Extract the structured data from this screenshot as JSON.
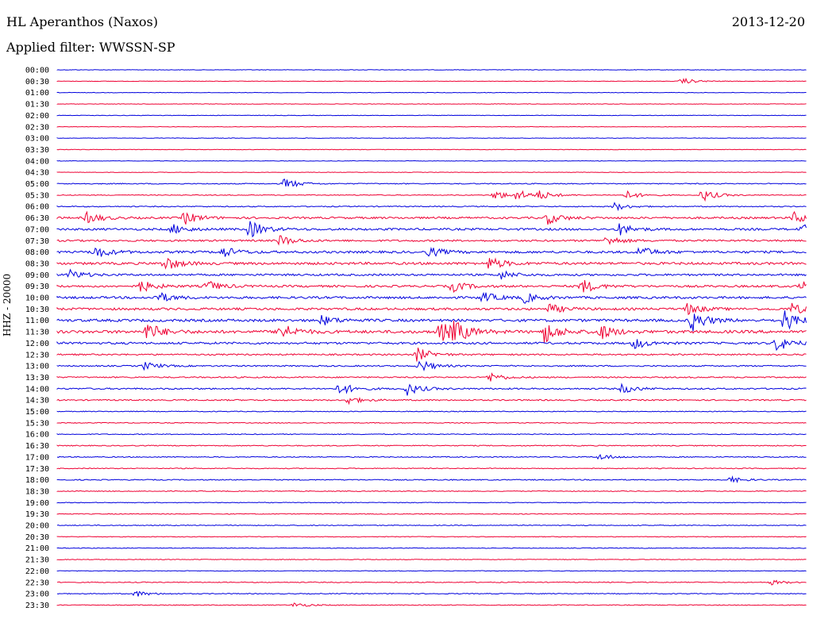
{
  "header": {
    "station": "HL Aperanthos (Naxos)",
    "date": "2013-12-20",
    "filter": "Applied filter: WWSSN-SP"
  },
  "axis": {
    "channel_label": "HHZ - 20000"
  },
  "colors": {
    "trace_a": "#0000dd",
    "trace_b": "#ee0033",
    "background": "#ffffff"
  },
  "chart_data": {
    "type": "line",
    "title": "HL Aperanthos (Naxos)",
    "subtitle": "Applied filter: WWSSN-SP",
    "ylabel": "HHZ - 20000",
    "grid": false,
    "row_labels": [
      "00:00",
      "00:30",
      "01:00",
      "01:30",
      "02:00",
      "02:30",
      "03:00",
      "03:30",
      "04:00",
      "04:30",
      "05:00",
      "05:30",
      "06:00",
      "06:30",
      "07:00",
      "07:30",
      "08:00",
      "08:30",
      "09:00",
      "09:30",
      "10:00",
      "10:30",
      "11:00",
      "11:30",
      "12:00",
      "12:30",
      "13:00",
      "13:30",
      "14:00",
      "14:30",
      "15:00",
      "15:30",
      "16:00",
      "16:30",
      "17:00",
      "17:30",
      "18:00",
      "18:30",
      "19:00",
      "19:30",
      "20:00",
      "20:30",
      "21:00",
      "21:30",
      "22:00",
      "22:30",
      "23:00",
      "23:30"
    ],
    "minutes_per_row": 30,
    "color_cycle": [
      "#0000dd",
      "#ee0033"
    ],
    "noise_level": [
      0.3,
      0.3,
      0.3,
      0.3,
      0.3,
      0.3,
      0.3,
      0.3,
      0.3,
      0.3,
      0.6,
      0.5,
      0.6,
      1.2,
      1.3,
      1.1,
      1.4,
      1.5,
      1.2,
      1.3,
      1.4,
      1.4,
      1.6,
      1.8,
      1.3,
      0.9,
      0.8,
      0.8,
      0.9,
      0.8,
      0.5,
      0.5,
      0.5,
      0.6,
      0.6,
      0.5,
      0.6,
      0.5,
      0.4,
      0.5,
      0.5,
      0.4,
      0.4,
      0.4,
      0.4,
      0.5,
      0.5,
      0.5
    ],
    "events": [
      {
        "row": 1,
        "minute": 25.0,
        "amplitude": 4
      },
      {
        "row": 10,
        "minute": 9.1,
        "amplitude": 7
      },
      {
        "row": 11,
        "minute": 17.5,
        "amplitude": 6
      },
      {
        "row": 11,
        "minute": 18.4,
        "amplitude": 6
      },
      {
        "row": 11,
        "minute": 19.3,
        "amplitude": 5
      },
      {
        "row": 11,
        "minute": 22.8,
        "amplitude": 5
      },
      {
        "row": 11,
        "minute": 25.8,
        "amplitude": 8
      },
      {
        "row": 12,
        "minute": 22.3,
        "amplitude": 5
      },
      {
        "row": 13,
        "minute": 1.2,
        "amplitude": 7
      },
      {
        "row": 13,
        "minute": 5.1,
        "amplitude": 8
      },
      {
        "row": 13,
        "minute": 19.6,
        "amplitude": 8
      },
      {
        "row": 13,
        "minute": 29.5,
        "amplitude": 7
      },
      {
        "row": 14,
        "minute": 4.6,
        "amplitude": 6
      },
      {
        "row": 14,
        "minute": 7.7,
        "amplitude": 11
      },
      {
        "row": 14,
        "minute": 22.5,
        "amplitude": 7
      },
      {
        "row": 14,
        "minute": 29.8,
        "amplitude": 6
      },
      {
        "row": 15,
        "minute": 8.9,
        "amplitude": 7
      },
      {
        "row": 15,
        "minute": 22.0,
        "amplitude": 6
      },
      {
        "row": 16,
        "minute": 1.5,
        "amplitude": 8
      },
      {
        "row": 16,
        "minute": 6.6,
        "amplitude": 7
      },
      {
        "row": 16,
        "minute": 14.9,
        "amplitude": 6
      },
      {
        "row": 16,
        "minute": 23.3,
        "amplitude": 7
      },
      {
        "row": 17,
        "minute": 4.3,
        "amplitude": 9
      },
      {
        "row": 17,
        "minute": 17.3,
        "amplitude": 8
      },
      {
        "row": 18,
        "minute": 0.5,
        "amplitude": 6
      },
      {
        "row": 18,
        "minute": 17.7,
        "amplitude": 6
      },
      {
        "row": 19,
        "minute": 3.3,
        "amplitude": 8
      },
      {
        "row": 19,
        "minute": 6.0,
        "amplitude": 7
      },
      {
        "row": 19,
        "minute": 15.8,
        "amplitude": 7
      },
      {
        "row": 19,
        "minute": 21.0,
        "amplitude": 9
      },
      {
        "row": 19,
        "minute": 29.8,
        "amplitude": 6
      },
      {
        "row": 20,
        "minute": 4.0,
        "amplitude": 7
      },
      {
        "row": 20,
        "minute": 17.0,
        "amplitude": 7
      },
      {
        "row": 20,
        "minute": 18.7,
        "amplitude": 6
      },
      {
        "row": 21,
        "minute": 19.7,
        "amplitude": 6
      },
      {
        "row": 21,
        "minute": 25.2,
        "amplitude": 7
      },
      {
        "row": 21,
        "minute": 29.4,
        "amplitude": 7
      },
      {
        "row": 22,
        "minute": 10.6,
        "amplitude": 6
      },
      {
        "row": 22,
        "minute": 25.4,
        "amplitude": 14
      },
      {
        "row": 22,
        "minute": 29.1,
        "amplitude": 14
      },
      {
        "row": 23,
        "minute": 3.6,
        "amplitude": 12
      },
      {
        "row": 23,
        "minute": 8.9,
        "amplitude": 12
      },
      {
        "row": 23,
        "minute": 15.3,
        "amplitude": 14
      },
      {
        "row": 23,
        "minute": 15.9,
        "amplitude": 12
      },
      {
        "row": 23,
        "minute": 19.5,
        "amplitude": 14
      },
      {
        "row": 23,
        "minute": 21.7,
        "amplitude": 10
      },
      {
        "row": 24,
        "minute": 23.1,
        "amplitude": 7
      },
      {
        "row": 24,
        "minute": 28.8,
        "amplitude": 10
      },
      {
        "row": 25,
        "minute": 14.4,
        "amplitude": 9
      },
      {
        "row": 26,
        "minute": 3.5,
        "amplitude": 5
      },
      {
        "row": 26,
        "minute": 14.5,
        "amplitude": 8
      },
      {
        "row": 27,
        "minute": 17.3,
        "amplitude": 6
      },
      {
        "row": 28,
        "minute": 11.3,
        "amplitude": 8
      },
      {
        "row": 28,
        "minute": 14.0,
        "amplitude": 8
      },
      {
        "row": 28,
        "minute": 22.6,
        "amplitude": 6
      },
      {
        "row": 29,
        "minute": 11.6,
        "amplitude": 5
      },
      {
        "row": 34,
        "minute": 21.7,
        "amplitude": 4
      },
      {
        "row": 36,
        "minute": 26.9,
        "amplitude": 4
      },
      {
        "row": 45,
        "minute": 28.6,
        "amplitude": 3
      },
      {
        "row": 46,
        "minute": 3.1,
        "amplitude": 4
      },
      {
        "row": 47,
        "minute": 9.5,
        "amplitude": 3
      }
    ]
  }
}
